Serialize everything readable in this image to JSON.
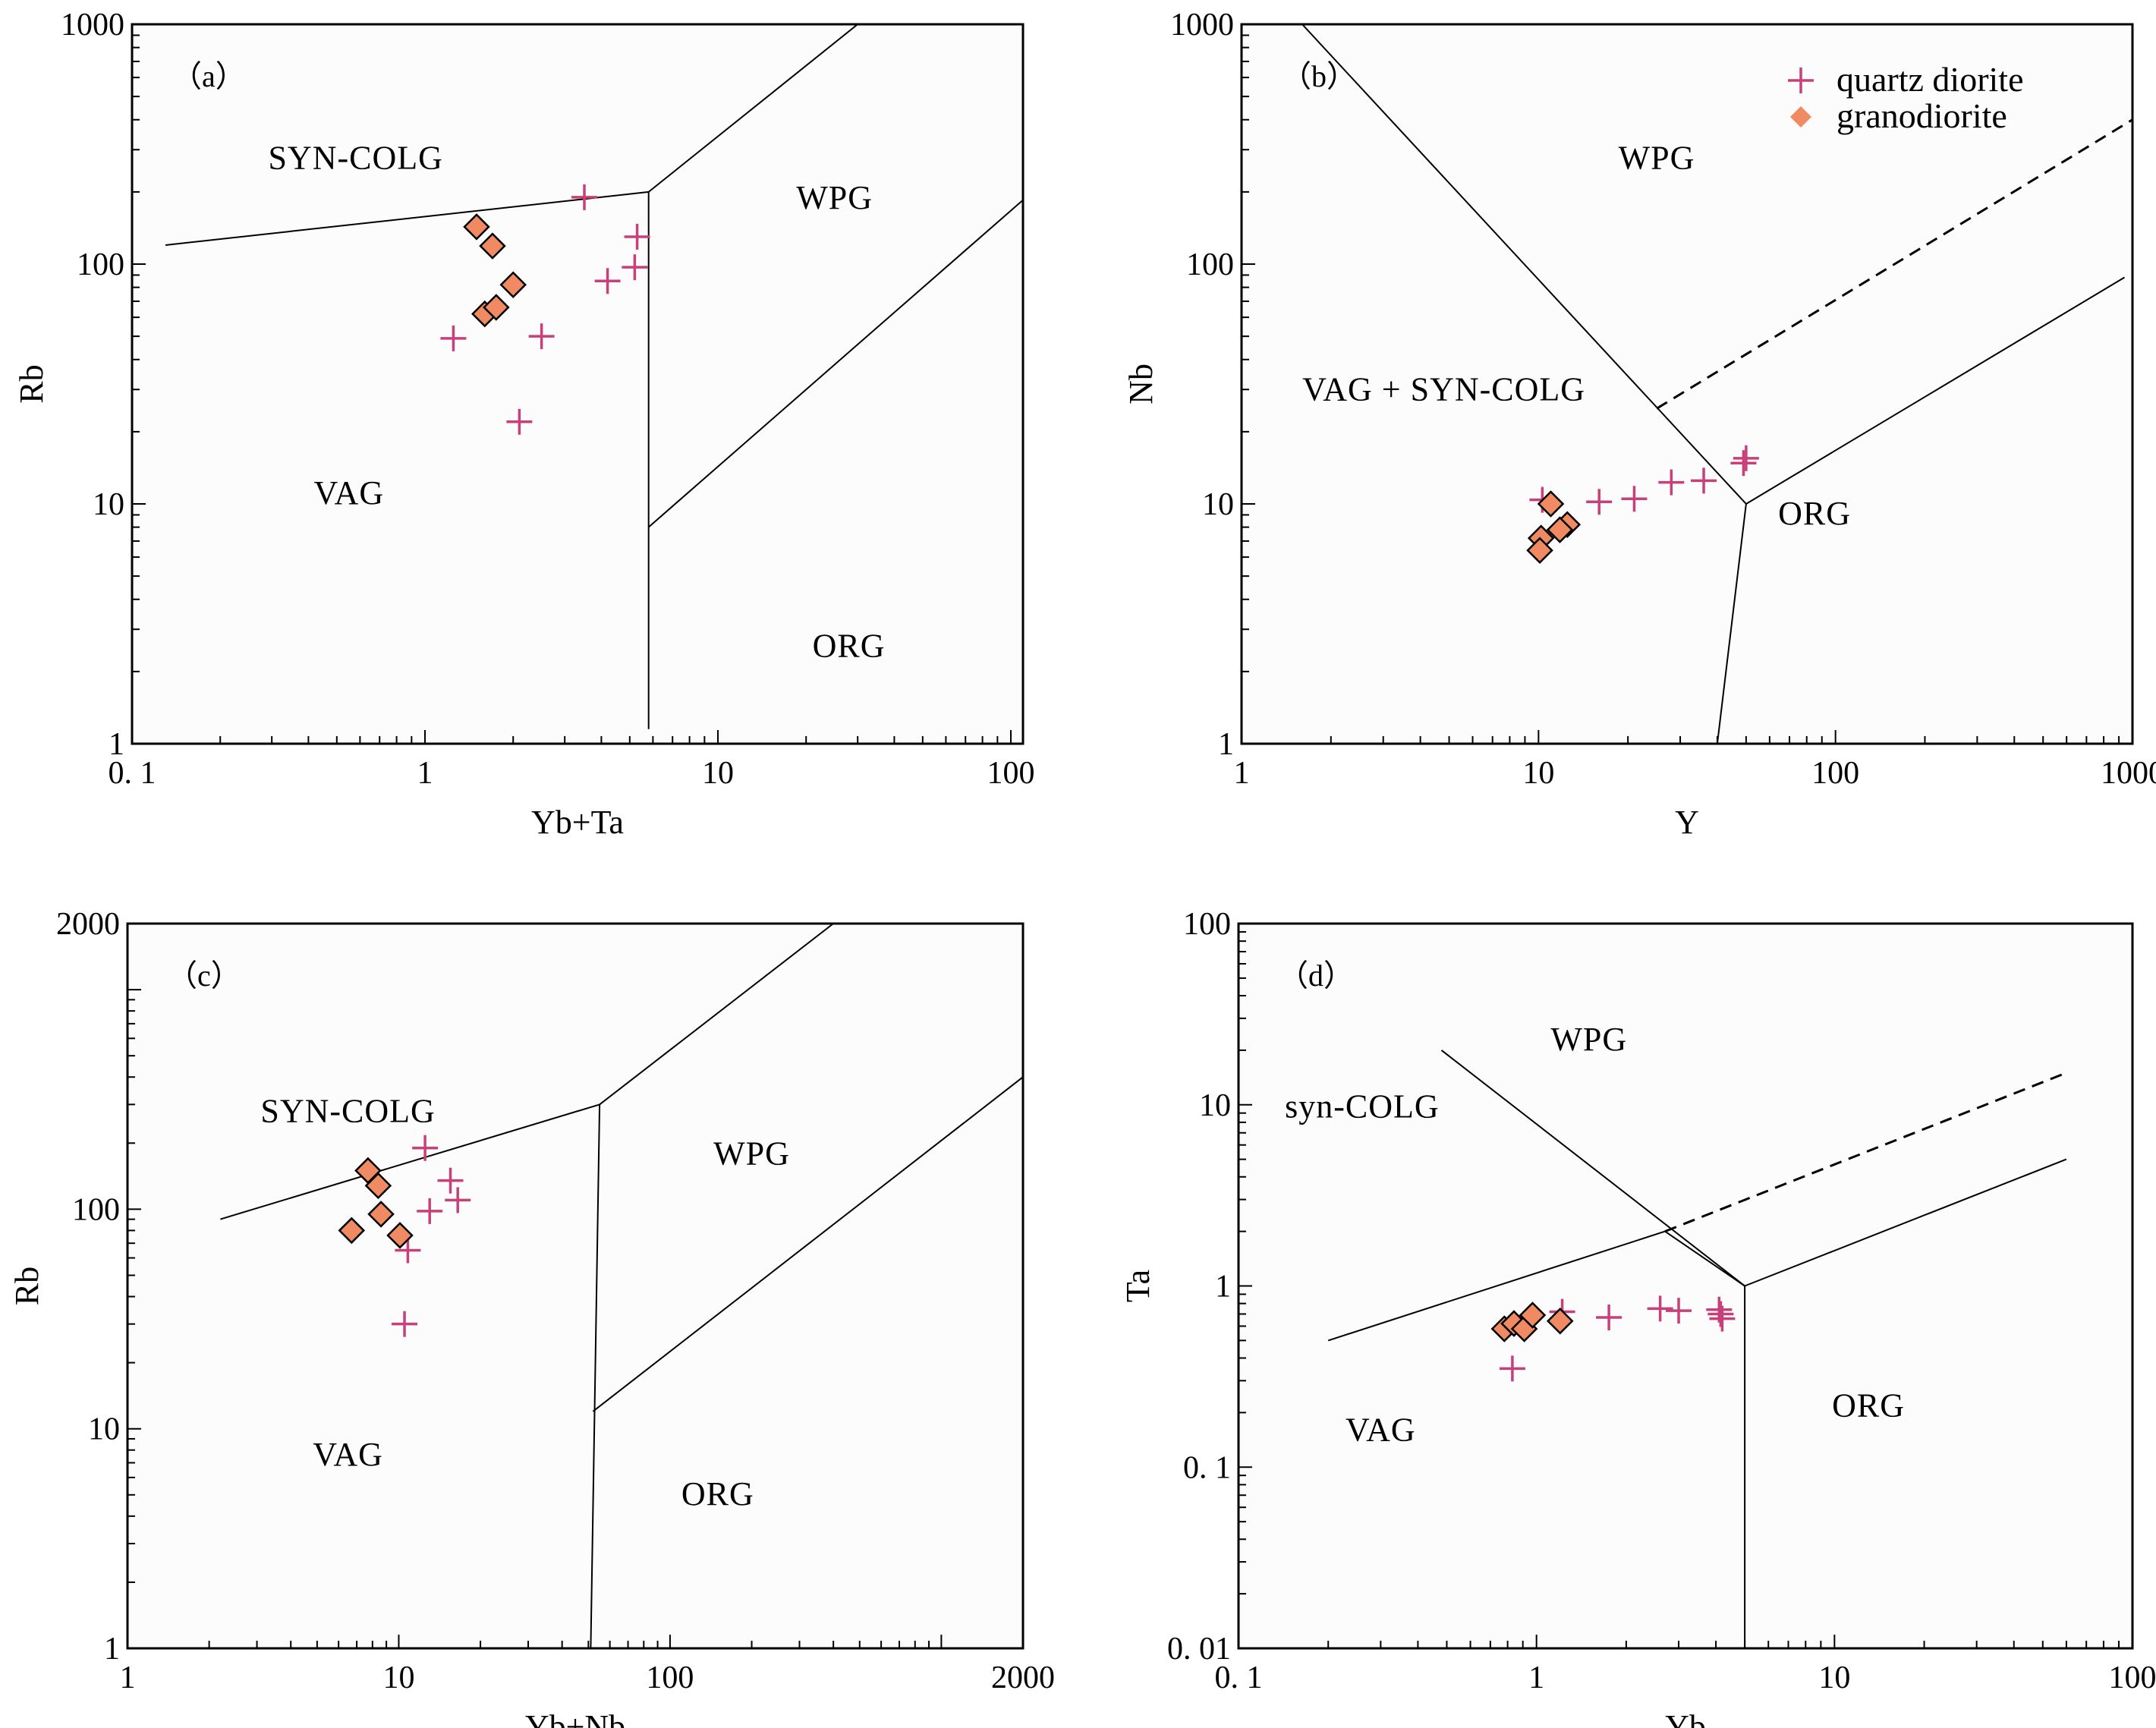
{
  "legend": {
    "items": [
      {
        "name": "quartz diorite",
        "marker": "cross",
        "color": "#c8407a"
      },
      {
        "name": "granodiorite",
        "marker": "diamond",
        "color": "#f08a62"
      }
    ]
  },
  "chart_data": [
    {
      "id": "a",
      "type": "scatter",
      "panel_label": "（a）",
      "xlabel": "Yb+Ta",
      "ylabel": "Rb",
      "xscale": "log",
      "yscale": "log",
      "xlim": [
        0.1,
        110
      ],
      "ylim": [
        1,
        1000
      ],
      "xticks": [
        {
          "v": 0.1,
          "label": "0. 1"
        },
        {
          "v": 1,
          "label": "1"
        },
        {
          "v": 10,
          "label": "10"
        },
        {
          "v": 100,
          "label": "100"
        }
      ],
      "yticks": [
        {
          "v": 1,
          "label": "1"
        },
        {
          "v": 10,
          "label": "10"
        },
        {
          "v": 100,
          "label": "100"
        },
        {
          "v": 1000,
          "label": "1000"
        }
      ],
      "boundaries": [
        {
          "style": "solid",
          "points": [
            [
              0.13,
              120
            ],
            [
              5.8,
              200
            ]
          ]
        },
        {
          "style": "solid",
          "points": [
            [
              5.8,
              200
            ],
            [
              30,
              1000
            ]
          ]
        },
        {
          "style": "solid",
          "points": [
            [
              5.8,
              200
            ],
            [
              5.8,
              1.15
            ]
          ]
        },
        {
          "style": "solid",
          "points": [
            [
              5.8,
              8
            ],
            [
              110,
              185
            ]
          ]
        }
      ],
      "fields": [
        {
          "label": "SYN-COLG",
          "x": 0.58,
          "y": 250
        },
        {
          "label": "WPG",
          "x": 25,
          "y": 170
        },
        {
          "label": "VAG",
          "x": 0.55,
          "y": 10
        },
        {
          "label": "ORG",
          "x": 28,
          "y": 2.3
        }
      ],
      "series": [
        {
          "name": "quartz diorite",
          "marker": "cross",
          "x": [
            1.25,
            2.5,
            2.1,
            3.5,
            4.2,
            5.2,
            5.3
          ],
          "y": [
            49,
            50,
            22,
            190,
            85,
            97,
            130
          ]
        },
        {
          "name": "granodiorite",
          "marker": "diamond",
          "x": [
            1.5,
            1.7,
            1.6,
            1.75,
            2.0
          ],
          "y": [
            143,
            119,
            62,
            66,
            82
          ]
        }
      ]
    },
    {
      "id": "b",
      "type": "scatter",
      "panel_label": "（b）",
      "xlabel": "Y",
      "ylabel": "Nb",
      "xscale": "log",
      "yscale": "log",
      "xlim": [
        1,
        1000
      ],
      "ylim": [
        1,
        1000
      ],
      "xticks": [
        {
          "v": 1,
          "label": "1"
        },
        {
          "v": 10,
          "label": "10"
        },
        {
          "v": 100,
          "label": "100"
        },
        {
          "v": 1000,
          "label": "1000"
        }
      ],
      "yticks": [
        {
          "v": 1,
          "label": "1"
        },
        {
          "v": 10,
          "label": "10"
        },
        {
          "v": 100,
          "label": "100"
        },
        {
          "v": 1000,
          "label": "1000"
        }
      ],
      "boundaries": [
        {
          "style": "solid",
          "points": [
            [
              1.6,
              1000
            ],
            [
              50,
              10
            ]
          ]
        },
        {
          "style": "solid",
          "points": [
            [
              50,
              10
            ],
            [
              40,
              1
            ]
          ]
        },
        {
          "style": "solid",
          "points": [
            [
              50,
              10
            ],
            [
              940,
              88
            ]
          ]
        },
        {
          "style": "dashed",
          "points": [
            [
              25,
              25
            ],
            [
              1000,
              400
            ]
          ]
        }
      ],
      "fields": [
        {
          "label": "WPG",
          "x": 25,
          "y": 250
        },
        {
          "label": "VAG + SYN-COLG",
          "x": 4.8,
          "y": 27
        },
        {
          "label": "ORG",
          "x": 85,
          "y": 8.2
        }
      ],
      "series": [
        {
          "name": "quartz diorite",
          "marker": "cross",
          "x": [
            10.3,
            16,
            21,
            28,
            36,
            49,
            50
          ],
          "y": [
            10.4,
            10.2,
            10.5,
            12.3,
            12.5,
            14.8,
            15.5
          ]
        },
        {
          "name": "granodiorite",
          "marker": "diamond",
          "x": [
            11,
            12.5,
            11.8,
            10.2,
            10.1
          ],
          "y": [
            10,
            8.2,
            7.8,
            7.2,
            6.4
          ]
        }
      ]
    },
    {
      "id": "c",
      "type": "scatter",
      "panel_label": "（c）",
      "xlabel": "Yb+Nb",
      "ylabel": "Rb",
      "xscale": "log",
      "yscale": "log",
      "xlim": [
        1,
        2000
      ],
      "ylim": [
        1,
        2000
      ],
      "xticks": [
        {
          "v": 1,
          "label": "1"
        },
        {
          "v": 10,
          "label": "10"
        },
        {
          "v": 100,
          "label": "100"
        },
        {
          "v": 2000,
          "label": "2000"
        }
      ],
      "yticks": [
        {
          "v": 1,
          "label": "1"
        },
        {
          "v": 10,
          "label": "10"
        },
        {
          "v": 100,
          "label": "100"
        },
        {
          "v": 2000,
          "label": "2000"
        }
      ],
      "boundaries": [
        {
          "style": "solid",
          "points": [
            [
              2.2,
              90
            ],
            [
              55,
              300
            ]
          ]
        },
        {
          "style": "solid",
          "points": [
            [
              55,
              300
            ],
            [
              400,
              2000
            ]
          ]
        },
        {
          "style": "solid",
          "points": [
            [
              55,
              300
            ],
            [
              51,
              1
            ]
          ]
        },
        {
          "style": "solid",
          "points": [
            [
              52,
              12
            ],
            [
              2000,
              400
            ]
          ]
        }
      ],
      "fields": [
        {
          "label": "SYN-COLG",
          "x": 6.5,
          "y": 250
        },
        {
          "label": "WPG",
          "x": 200,
          "y": 160
        },
        {
          "label": "VAG",
          "x": 6.5,
          "y": 6.8
        },
        {
          "label": "ORG",
          "x": 150,
          "y": 4.5
        }
      ],
      "series": [
        {
          "name": "quartz diorite",
          "marker": "cross",
          "x": [
            12.5,
            15.5,
            16.5,
            13,
            10.8,
            10.5
          ],
          "y": [
            190,
            135,
            110,
            98,
            65,
            30
          ]
        },
        {
          "name": "granodiorite",
          "marker": "diamond",
          "x": [
            7.7,
            8.4,
            8.6,
            10.1,
            6.7
          ],
          "y": [
            150,
            128,
            95,
            76,
            80
          ]
        }
      ]
    },
    {
      "id": "d",
      "type": "scatter",
      "panel_label": "（d）",
      "xlabel": "Yb",
      "ylabel": "Ta",
      "xscale": "log",
      "yscale": "log",
      "xlim": [
        0.1,
        100
      ],
      "ylim": [
        0.01,
        100
      ],
      "xticks": [
        {
          "v": 0.1,
          "label": "0. 1"
        },
        {
          "v": 1,
          "label": "1"
        },
        {
          "v": 10,
          "label": "10"
        },
        {
          "v": 100,
          "label": "100"
        }
      ],
      "yticks": [
        {
          "v": 0.01,
          "label": "0. 01"
        },
        {
          "v": 0.1,
          "label": "0. 1"
        },
        {
          "v": 1,
          "label": "1"
        },
        {
          "v": 10,
          "label": "10"
        },
        {
          "v": 100,
          "label": "100"
        }
      ],
      "boundaries": [
        {
          "style": "solid",
          "points": [
            [
              0.2,
              0.5
            ],
            [
              2.7,
              2.0
            ]
          ]
        },
        {
          "style": "solid",
          "points": [
            [
              0.48,
              20
            ],
            [
              5,
              1
            ]
          ]
        },
        {
          "style": "solid",
          "points": [
            [
              2.7,
              2.0
            ],
            [
              5,
              1
            ]
          ]
        },
        {
          "style": "solid",
          "points": [
            [
              5,
              1
            ],
            [
              5,
              0.01
            ]
          ]
        },
        {
          "style": "solid",
          "points": [
            [
              5,
              1
            ],
            [
              60,
              5
            ]
          ]
        },
        {
          "style": "dashed",
          "points": [
            [
              2.7,
              2.0
            ],
            [
              60,
              15
            ]
          ]
        }
      ],
      "fields": [
        {
          "label": "WPG",
          "x": 1.5,
          "y": 20
        },
        {
          "label": "syn-COLG",
          "x": 0.26,
          "y": 8.5
        },
        {
          "label": "VAG",
          "x": 0.3,
          "y": 0.14
        },
        {
          "label": "ORG",
          "x": 13,
          "y": 0.19
        }
      ],
      "series": [
        {
          "name": "quartz diorite",
          "marker": "cross",
          "x": [
            0.83,
            1.22,
            1.75,
            2.6,
            3.0,
            4.1,
            4.15,
            4.2
          ],
          "y": [
            0.35,
            0.72,
            0.67,
            0.75,
            0.73,
            0.74,
            0.7,
            0.66
          ]
        },
        {
          "name": "granodiorite",
          "marker": "diamond",
          "x": [
            0.78,
            0.84,
            0.91,
            0.97,
            1.2
          ],
          "y": [
            0.58,
            0.62,
            0.58,
            0.69,
            0.64
          ]
        }
      ]
    }
  ]
}
